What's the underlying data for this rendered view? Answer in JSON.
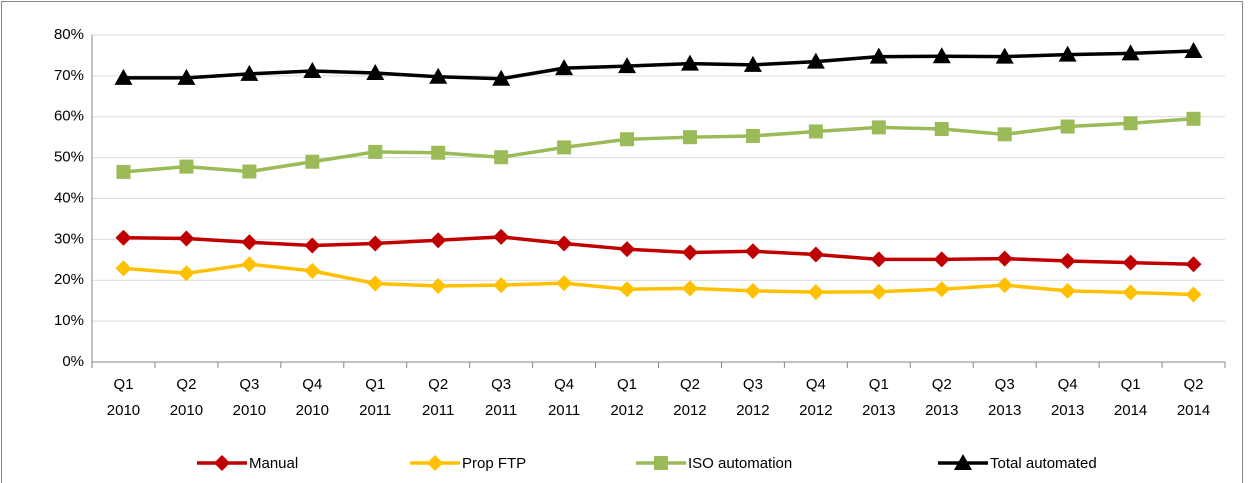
{
  "chart_data": {
    "type": "line",
    "categories": [
      "Q1 2010",
      "Q2 2010",
      "Q3 2010",
      "Q4 2010",
      "Q1 2011",
      "Q2 2011",
      "Q3 2011",
      "Q4 2011",
      "Q1 2012",
      "Q2 2012",
      "Q3 2012",
      "Q4 2012",
      "Q1 2013",
      "Q2 2013",
      "Q3 2013",
      "Q4 2013",
      "Q1 2014",
      "Q2 2014"
    ],
    "series": [
      {
        "name": "Manual",
        "color": "#c00000",
        "marker": "diamond",
        "values": [
          30.4,
          30.2,
          29.3,
          28.5,
          29.0,
          29.8,
          30.6,
          29.0,
          27.6,
          26.8,
          27.1,
          26.3,
          25.1,
          25.1,
          25.3,
          24.7,
          24.3,
          23.9
        ]
      },
      {
        "name": "Prop FTP",
        "color": "#ffc000",
        "marker": "diamond",
        "values": [
          22.9,
          21.7,
          23.9,
          22.3,
          19.2,
          18.6,
          18.8,
          19.3,
          17.8,
          18.0,
          17.4,
          17.1,
          17.2,
          17.8,
          18.8,
          17.4,
          17.0,
          16.5
        ]
      },
      {
        "name": "ISO automation",
        "color": "#9bbb59",
        "marker": "square",
        "values": [
          46.5,
          47.8,
          46.6,
          49.0,
          51.4,
          51.2,
          50.1,
          52.5,
          54.5,
          55.0,
          55.3,
          56.4,
          57.4,
          57.0,
          55.7,
          57.6,
          58.4,
          59.5
        ]
      },
      {
        "name": "Total automated",
        "color": "#000000",
        "marker": "triangle",
        "values": [
          69.5,
          69.5,
          70.5,
          71.2,
          70.7,
          69.8,
          69.3,
          71.9,
          72.4,
          73.0,
          72.7,
          73.5,
          74.7,
          74.8,
          74.7,
          75.2,
          75.5,
          76.1
        ]
      }
    ],
    "ylim": [
      0,
      80
    ],
    "yticks": [
      {
        "value": 0,
        "label": "0%"
      },
      {
        "value": 10,
        "label": "10%"
      },
      {
        "value": 20,
        "label": "20%"
      },
      {
        "value": 30,
        "label": "30%"
      },
      {
        "value": 40,
        "label": "40%"
      },
      {
        "value": 50,
        "label": "50%"
      },
      {
        "value": 60,
        "label": "60%"
      },
      {
        "value": 70,
        "label": "70%"
      },
      {
        "value": 80,
        "label": "80%"
      }
    ],
    "grid": true,
    "legend": "bottom"
  }
}
